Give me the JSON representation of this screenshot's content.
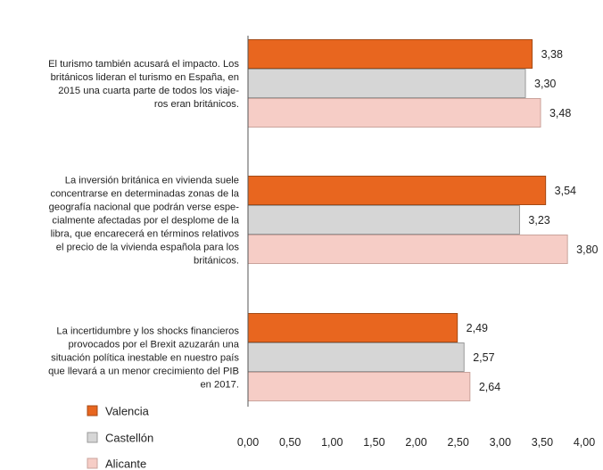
{
  "chart_data": {
    "type": "bar",
    "orientation": "horizontal",
    "categories": [
      [
        "El turismo también acusará el impacto. Los",
        "británicos lideran el turismo en España, en",
        "2015 una cuarta parte de todos los viaje-",
        "ros eran británicos."
      ],
      [
        "La inversión británica en vivienda suele",
        "concentrarse en determinadas zonas de la",
        "geografía nacional que podrán verse espe-",
        "cialmente afectadas por el desplome de la",
        "libra, que encarecerá en términos relativos",
        "el precio de la vivienda española para los",
        "británicos."
      ],
      [
        "La incertidumbre y los shocks financieros",
        "provocados por el Brexit azuzarán una",
        "situación política inestable en nuestro país",
        "que llevará a un menor crecimiento del PIB",
        "en 2017."
      ]
    ],
    "series": [
      {
        "name": "Valencia",
        "color": "#e8661f",
        "values": [
          3.38,
          3.54,
          2.49
        ],
        "labels": [
          "3,38",
          "3,54",
          "2,49"
        ]
      },
      {
        "name": "Castellón",
        "color": "#d6d6d6",
        "values": [
          3.3,
          3.23,
          2.57
        ],
        "labels": [
          "3,30",
          "3,23",
          "2,57"
        ]
      },
      {
        "name": "Alicante",
        "color": "#f6cdc6",
        "values": [
          3.48,
          3.8,
          2.64
        ],
        "labels": [
          "3,48",
          "3,80",
          "2,64"
        ]
      }
    ],
    "xlim": [
      0,
      4
    ],
    "xticks": [
      "0,00",
      "0,50",
      "1,00",
      "1,50",
      "2,00",
      "2,50",
      "3,00",
      "3,50",
      "4,00"
    ],
    "legend_position": "bottom-left",
    "grid": false
  }
}
